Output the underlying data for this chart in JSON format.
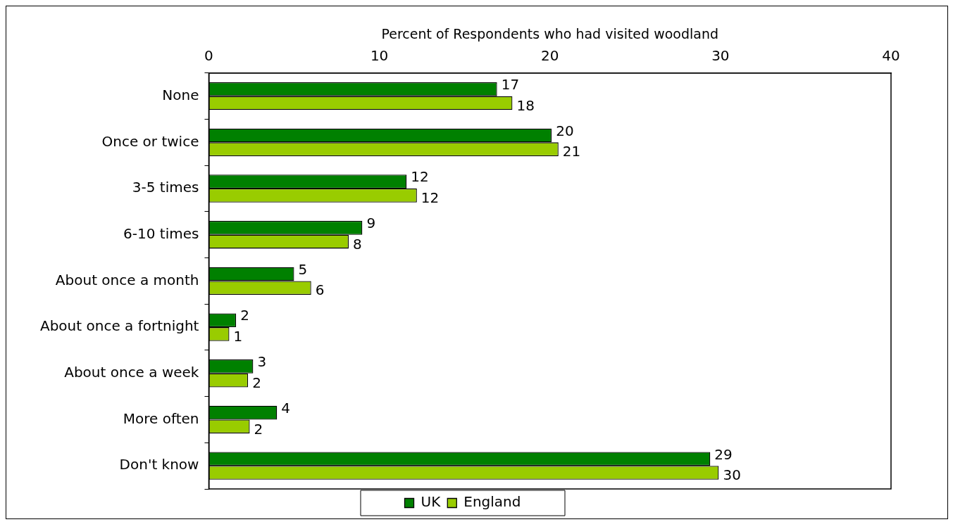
{
  "chart_data": {
    "type": "bar",
    "orientation": "horizontal",
    "xlabel": "Percent of Respondents who had visited woodland",
    "categories": [
      "None",
      "Once or twice",
      "3-5 times",
      "6-10 times",
      "About once a month",
      "About once a fortnight",
      "About once a week",
      "More often",
      "Don't know"
    ],
    "series": [
      {
        "name": "UK",
        "color": "#008000",
        "values": [
          16.9,
          20.1,
          11.6,
          9.0,
          5.0,
          1.6,
          2.6,
          4.0,
          29.4
        ],
        "value_labels": [
          "17",
          "20",
          "12",
          "9",
          "5",
          "2",
          "3",
          "4",
          "29"
        ]
      },
      {
        "name": "England",
        "color": "#99cc00",
        "values": [
          17.8,
          20.5,
          12.2,
          8.2,
          6.0,
          1.2,
          2.3,
          2.4,
          29.9
        ],
        "value_labels": [
          "18",
          "21",
          "12",
          "8",
          "6",
          "1",
          "2",
          "2",
          "30"
        ]
      }
    ],
    "xlim": [
      0,
      40
    ],
    "xticks": [
      0,
      10,
      20,
      30,
      40
    ],
    "grid": false,
    "legend": "bottom"
  }
}
